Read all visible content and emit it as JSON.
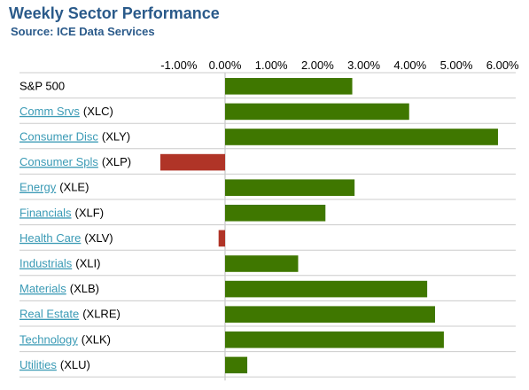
{
  "header": {
    "title": "Weekly Sector Performance",
    "subtitle": "Source: ICE Data Services"
  },
  "colors": {
    "positive": "#3f7700",
    "negative": "#b03427",
    "link": "#3a9ab5",
    "title": "#2a5a8a",
    "gridline": "#cccccc"
  },
  "chart_data": {
    "type": "bar",
    "orientation": "horizontal",
    "x_axis_position": "top",
    "xlim": [
      -1.5,
      6.0
    ],
    "xticks": [
      -1,
      0,
      1,
      2,
      3,
      4,
      5,
      6
    ],
    "xtick_labels": [
      "-1.00%",
      "0.00%",
      "1.00%",
      "2.00%",
      "3.00%",
      "4.00%",
      "5.00%",
      "6.00%"
    ],
    "rows": [
      {
        "name": "S&P 500",
        "ticker": "",
        "linked": false,
        "value": 2.75
      },
      {
        "name": "Comm Srvs",
        "ticker": "(XLC)",
        "linked": true,
        "value": 3.98
      },
      {
        "name": "Consumer Disc",
        "ticker": "(XLY)",
        "linked": true,
        "value": 5.9
      },
      {
        "name": "Consumer Spls",
        "ticker": "(XLP)",
        "linked": true,
        "value": -1.4
      },
      {
        "name": "Energy",
        "ticker": "(XLE)",
        "linked": true,
        "value": 2.8
      },
      {
        "name": "Financials",
        "ticker": "(XLF)",
        "linked": true,
        "value": 2.17
      },
      {
        "name": "Health Care",
        "ticker": "(XLV)",
        "linked": true,
        "value": -0.14
      },
      {
        "name": "Industrials",
        "ticker": "(XLI)",
        "linked": true,
        "value": 1.58
      },
      {
        "name": "Materials",
        "ticker": "(XLB)",
        "linked": true,
        "value": 4.37
      },
      {
        "name": "Real Estate",
        "ticker": "(XLRE)",
        "linked": true,
        "value": 4.54
      },
      {
        "name": "Technology",
        "ticker": "(XLK)",
        "linked": true,
        "value": 4.73
      },
      {
        "name": "Utilities",
        "ticker": "(XLU)",
        "linked": true,
        "value": 0.48
      }
    ]
  }
}
